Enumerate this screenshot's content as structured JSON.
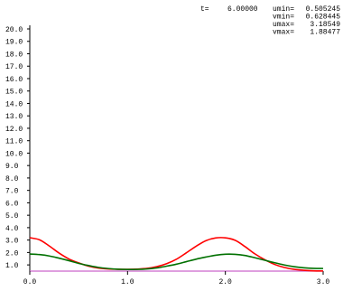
{
  "readout": {
    "t_label": "t=",
    "t_value": "6.00000",
    "stats": [
      {
        "label": "umin=",
        "value": "0.505245"
      },
      {
        "label": "vmin=",
        "value": "0.628445"
      },
      {
        "label": "umax=",
        "value": "3.18549"
      },
      {
        "label": "vmax=",
        "value": "1.88477"
      }
    ]
  },
  "chart_data": {
    "type": "line",
    "title": "",
    "xlabel": "",
    "ylabel": "",
    "xlim": [
      0,
      3
    ],
    "ylim": [
      0.5,
      20.0
    ],
    "x_ticks": [
      "0.0",
      "1.0",
      "2.0",
      "3.0"
    ],
    "y_ticks": [
      "1.0",
      "2.0",
      "3.0",
      "4.0",
      "5.0",
      "6.0",
      "7.0",
      "8.0",
      "9.0",
      "10.0",
      "11.0",
      "12.0",
      "13.0",
      "14.0",
      "15.0",
      "16.0",
      "17.0",
      "18.0",
      "19.0",
      "20.0"
    ],
    "grid": false,
    "colors": {
      "u": "#ff0000",
      "v": "#007000",
      "baseline": "#cc66cc"
    },
    "series": [
      {
        "key": "u",
        "x": [
          0.0,
          0.1,
          0.2,
          0.3,
          0.4,
          0.5,
          0.6,
          0.7,
          0.8,
          0.9,
          1.0,
          1.1,
          1.2,
          1.3,
          1.4,
          1.5,
          1.6,
          1.7,
          1.8,
          1.9,
          2.0,
          2.1,
          2.2,
          2.3,
          2.4,
          2.5,
          2.6,
          2.7,
          2.8,
          2.9,
          3.0
        ],
        "values": [
          3.19,
          3.02,
          2.52,
          1.95,
          1.48,
          1.16,
          0.9,
          0.75,
          0.68,
          0.65,
          0.64,
          0.66,
          0.72,
          0.86,
          1.1,
          1.46,
          1.97,
          2.5,
          2.95,
          3.17,
          3.18,
          2.98,
          2.48,
          1.9,
          1.43,
          1.05,
          0.8,
          0.65,
          0.57,
          0.52,
          0.51
        ]
      },
      {
        "key": "v",
        "x": [
          0.0,
          0.1,
          0.2,
          0.3,
          0.4,
          0.5,
          0.6,
          0.7,
          0.8,
          0.9,
          1.0,
          1.1,
          1.2,
          1.3,
          1.4,
          1.5,
          1.6,
          1.7,
          1.8,
          1.9,
          2.0,
          2.1,
          2.2,
          2.3,
          2.4,
          2.5,
          2.6,
          2.7,
          2.8,
          2.9,
          3.0
        ],
        "values": [
          1.88,
          1.83,
          1.72,
          1.54,
          1.34,
          1.12,
          0.95,
          0.8,
          0.71,
          0.65,
          0.63,
          0.64,
          0.68,
          0.76,
          0.9,
          1.06,
          1.26,
          1.46,
          1.63,
          1.78,
          1.86,
          1.85,
          1.76,
          1.58,
          1.38,
          1.18,
          1.0,
          0.86,
          0.77,
          0.72,
          0.71
        ]
      }
    ]
  }
}
